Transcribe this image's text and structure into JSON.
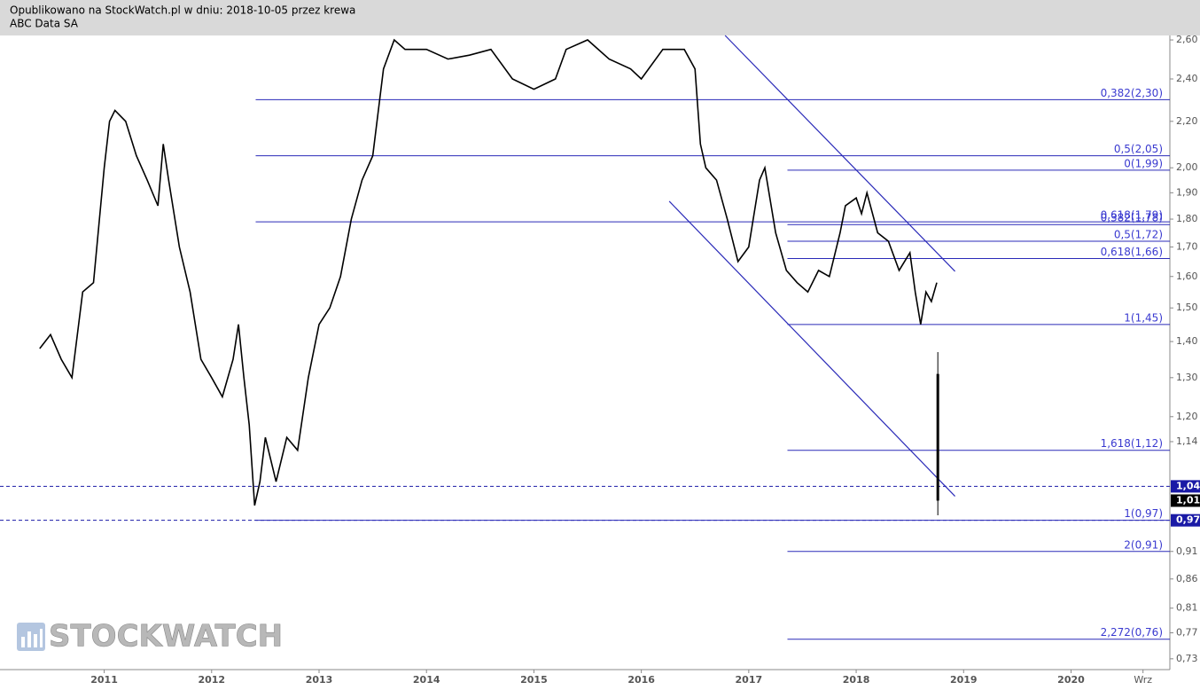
{
  "header": {
    "line1": "Opublikowano na StockWatch.pl w dniu: 2018-10-05 przez krewa",
    "line2": "ABC Data SA"
  },
  "chart_data": {
    "type": "line",
    "log_scale": true,
    "color": "#000000",
    "level_color": "#2a2ab8",
    "watermark": "STOCKWATCH",
    "xlim": [
      2010.03,
      2020.92
    ],
    "ylim": [
      0.714,
      2.624
    ],
    "xticks": [
      2011,
      2012,
      2013,
      2014,
      2015,
      2016,
      2017,
      2018,
      2019,
      2020,
      {
        "value": 2020.67,
        "label": "Wrz"
      }
    ],
    "yticks": [
      {
        "value": 2.6,
        "label": "2,60"
      },
      {
        "value": 2.4,
        "label": "2,40"
      },
      {
        "value": 2.2,
        "label": "2,20"
      },
      {
        "value": 2.0,
        "label": "2,00"
      },
      {
        "value": 1.9,
        "label": "1,90"
      },
      {
        "value": 1.8,
        "label": "1,80"
      },
      {
        "value": 1.7,
        "label": "1,70"
      },
      {
        "value": 1.6,
        "label": "1,60"
      },
      {
        "value": 1.5,
        "label": "1,50"
      },
      {
        "value": 1.4,
        "label": "1,40"
      },
      {
        "value": 1.3,
        "label": "1,30"
      },
      {
        "value": 1.2,
        "label": "1,20"
      },
      {
        "value": 1.14,
        "label": "1,14"
      },
      {
        "value": 0.91,
        "label": "0,91"
      },
      {
        "value": 0.86,
        "label": "0,86"
      },
      {
        "value": 0.81,
        "label": "0,81"
      },
      {
        "value": 0.77,
        "label": "0,77"
      },
      {
        "value": 0.73,
        "label": "0,73"
      }
    ],
    "x": [
      2010.4,
      2010.5,
      2010.6,
      2010.7,
      2010.8,
      2010.9,
      2011.0,
      2011.05,
      2011.1,
      2011.2,
      2011.3,
      2011.4,
      2011.5,
      2011.55,
      2011.6,
      2011.7,
      2011.8,
      2011.9,
      2012.0,
      2012.1,
      2012.2,
      2012.25,
      2012.3,
      2012.35,
      2012.4,
      2012.45,
      2012.5,
      2012.6,
      2012.7,
      2012.8,
      2012.9,
      2013.0,
      2013.1,
      2013.2,
      2013.3,
      2013.4,
      2013.5,
      2013.6,
      2013.7,
      2013.8,
      2014.0,
      2014.2,
      2014.4,
      2014.6,
      2014.8,
      2015.0,
      2015.2,
      2015.3,
      2015.5,
      2015.7,
      2015.9,
      2016.0,
      2016.2,
      2016.4,
      2016.5,
      2016.55,
      2016.6,
      2016.7,
      2016.8,
      2016.9,
      2017.0,
      2017.1,
      2017.15,
      2017.25,
      2017.35,
      2017.45,
      2017.55,
      2017.65,
      2017.75,
      2017.85,
      2017.9,
      2018.0,
      2018.05,
      2018.1,
      2018.2,
      2018.3,
      2018.4,
      2018.5,
      2018.55,
      2018.6,
      2018.65,
      2018.7,
      2018.75
    ],
    "values": [
      1.38,
      1.42,
      1.35,
      1.3,
      1.55,
      1.58,
      2.0,
      2.2,
      2.25,
      2.2,
      2.05,
      1.95,
      1.85,
      2.1,
      1.95,
      1.7,
      1.55,
      1.35,
      1.3,
      1.25,
      1.35,
      1.45,
      1.3,
      1.18,
      1.0,
      1.05,
      1.15,
      1.05,
      1.15,
      1.12,
      1.3,
      1.45,
      1.5,
      1.6,
      1.8,
      1.95,
      2.05,
      2.45,
      2.6,
      2.55,
      2.55,
      2.5,
      2.52,
      2.55,
      2.4,
      2.35,
      2.4,
      2.55,
      2.6,
      2.5,
      2.45,
      2.4,
      2.55,
      2.55,
      2.45,
      2.1,
      2.0,
      1.95,
      1.8,
      1.65,
      1.7,
      1.95,
      2.0,
      1.75,
      1.62,
      1.58,
      1.55,
      1.62,
      1.6,
      1.75,
      1.85,
      1.88,
      1.82,
      1.9,
      1.75,
      1.72,
      1.62,
      1.68,
      1.55,
      1.45,
      1.55,
      1.52,
      1.58
    ],
    "last_candle": {
      "x": 2018.76,
      "open": 1.31,
      "high": 1.37,
      "low": 0.98,
      "close": 1.01
    },
    "levels": [
      {
        "value": 2.3,
        "label": "0,382(2,30)",
        "from": 2012.41
      },
      {
        "value": 2.05,
        "label": "0,5(2,05)",
        "from": 2012.41
      },
      {
        "value": 1.99,
        "label": "0(1,99)",
        "from": 2017.36
      },
      {
        "value": 1.79,
        "label": "0,618(1,79)",
        "from": 2012.41
      },
      {
        "value": 1.78,
        "label": "0,382(1,78)",
        "from": 2017.36
      },
      {
        "value": 1.72,
        "label": "0,5(1,72)",
        "from": 2017.36
      },
      {
        "value": 1.66,
        "label": "0,618(1,66)",
        "from": 2017.36
      },
      {
        "value": 1.45,
        "label": "1(1,45)",
        "from": 2017.36
      },
      {
        "value": 1.12,
        "label": "1,618(1,12)",
        "from": 2017.36
      },
      {
        "value": 0.97,
        "label": "1(0,97)",
        "from": 2012.41
      },
      {
        "value": 0.91,
        "label": "2(0,91)",
        "from": 2017.36
      },
      {
        "value": 0.76,
        "label": "2,272(0,76)",
        "from": 2017.36
      }
    ],
    "dashed_levels": [
      1.04,
      0.97
    ],
    "price_markers": [
      {
        "value": 1.04,
        "label": "1,04",
        "color": "#1a1aa6"
      },
      {
        "value": 1.01,
        "label": "1,01",
        "color": "#000000"
      },
      {
        "value": 0.97,
        "label": "0,97",
        "color": "#1a1aa6"
      }
    ],
    "trend_lines": [
      {
        "x": [
          2016.78,
          2018.92
        ],
        "values": [
          2.624,
          1.617
        ]
      },
      {
        "x": [
          2016.26,
          2018.92
        ],
        "values": [
          1.867,
          1.019
        ]
      }
    ]
  }
}
